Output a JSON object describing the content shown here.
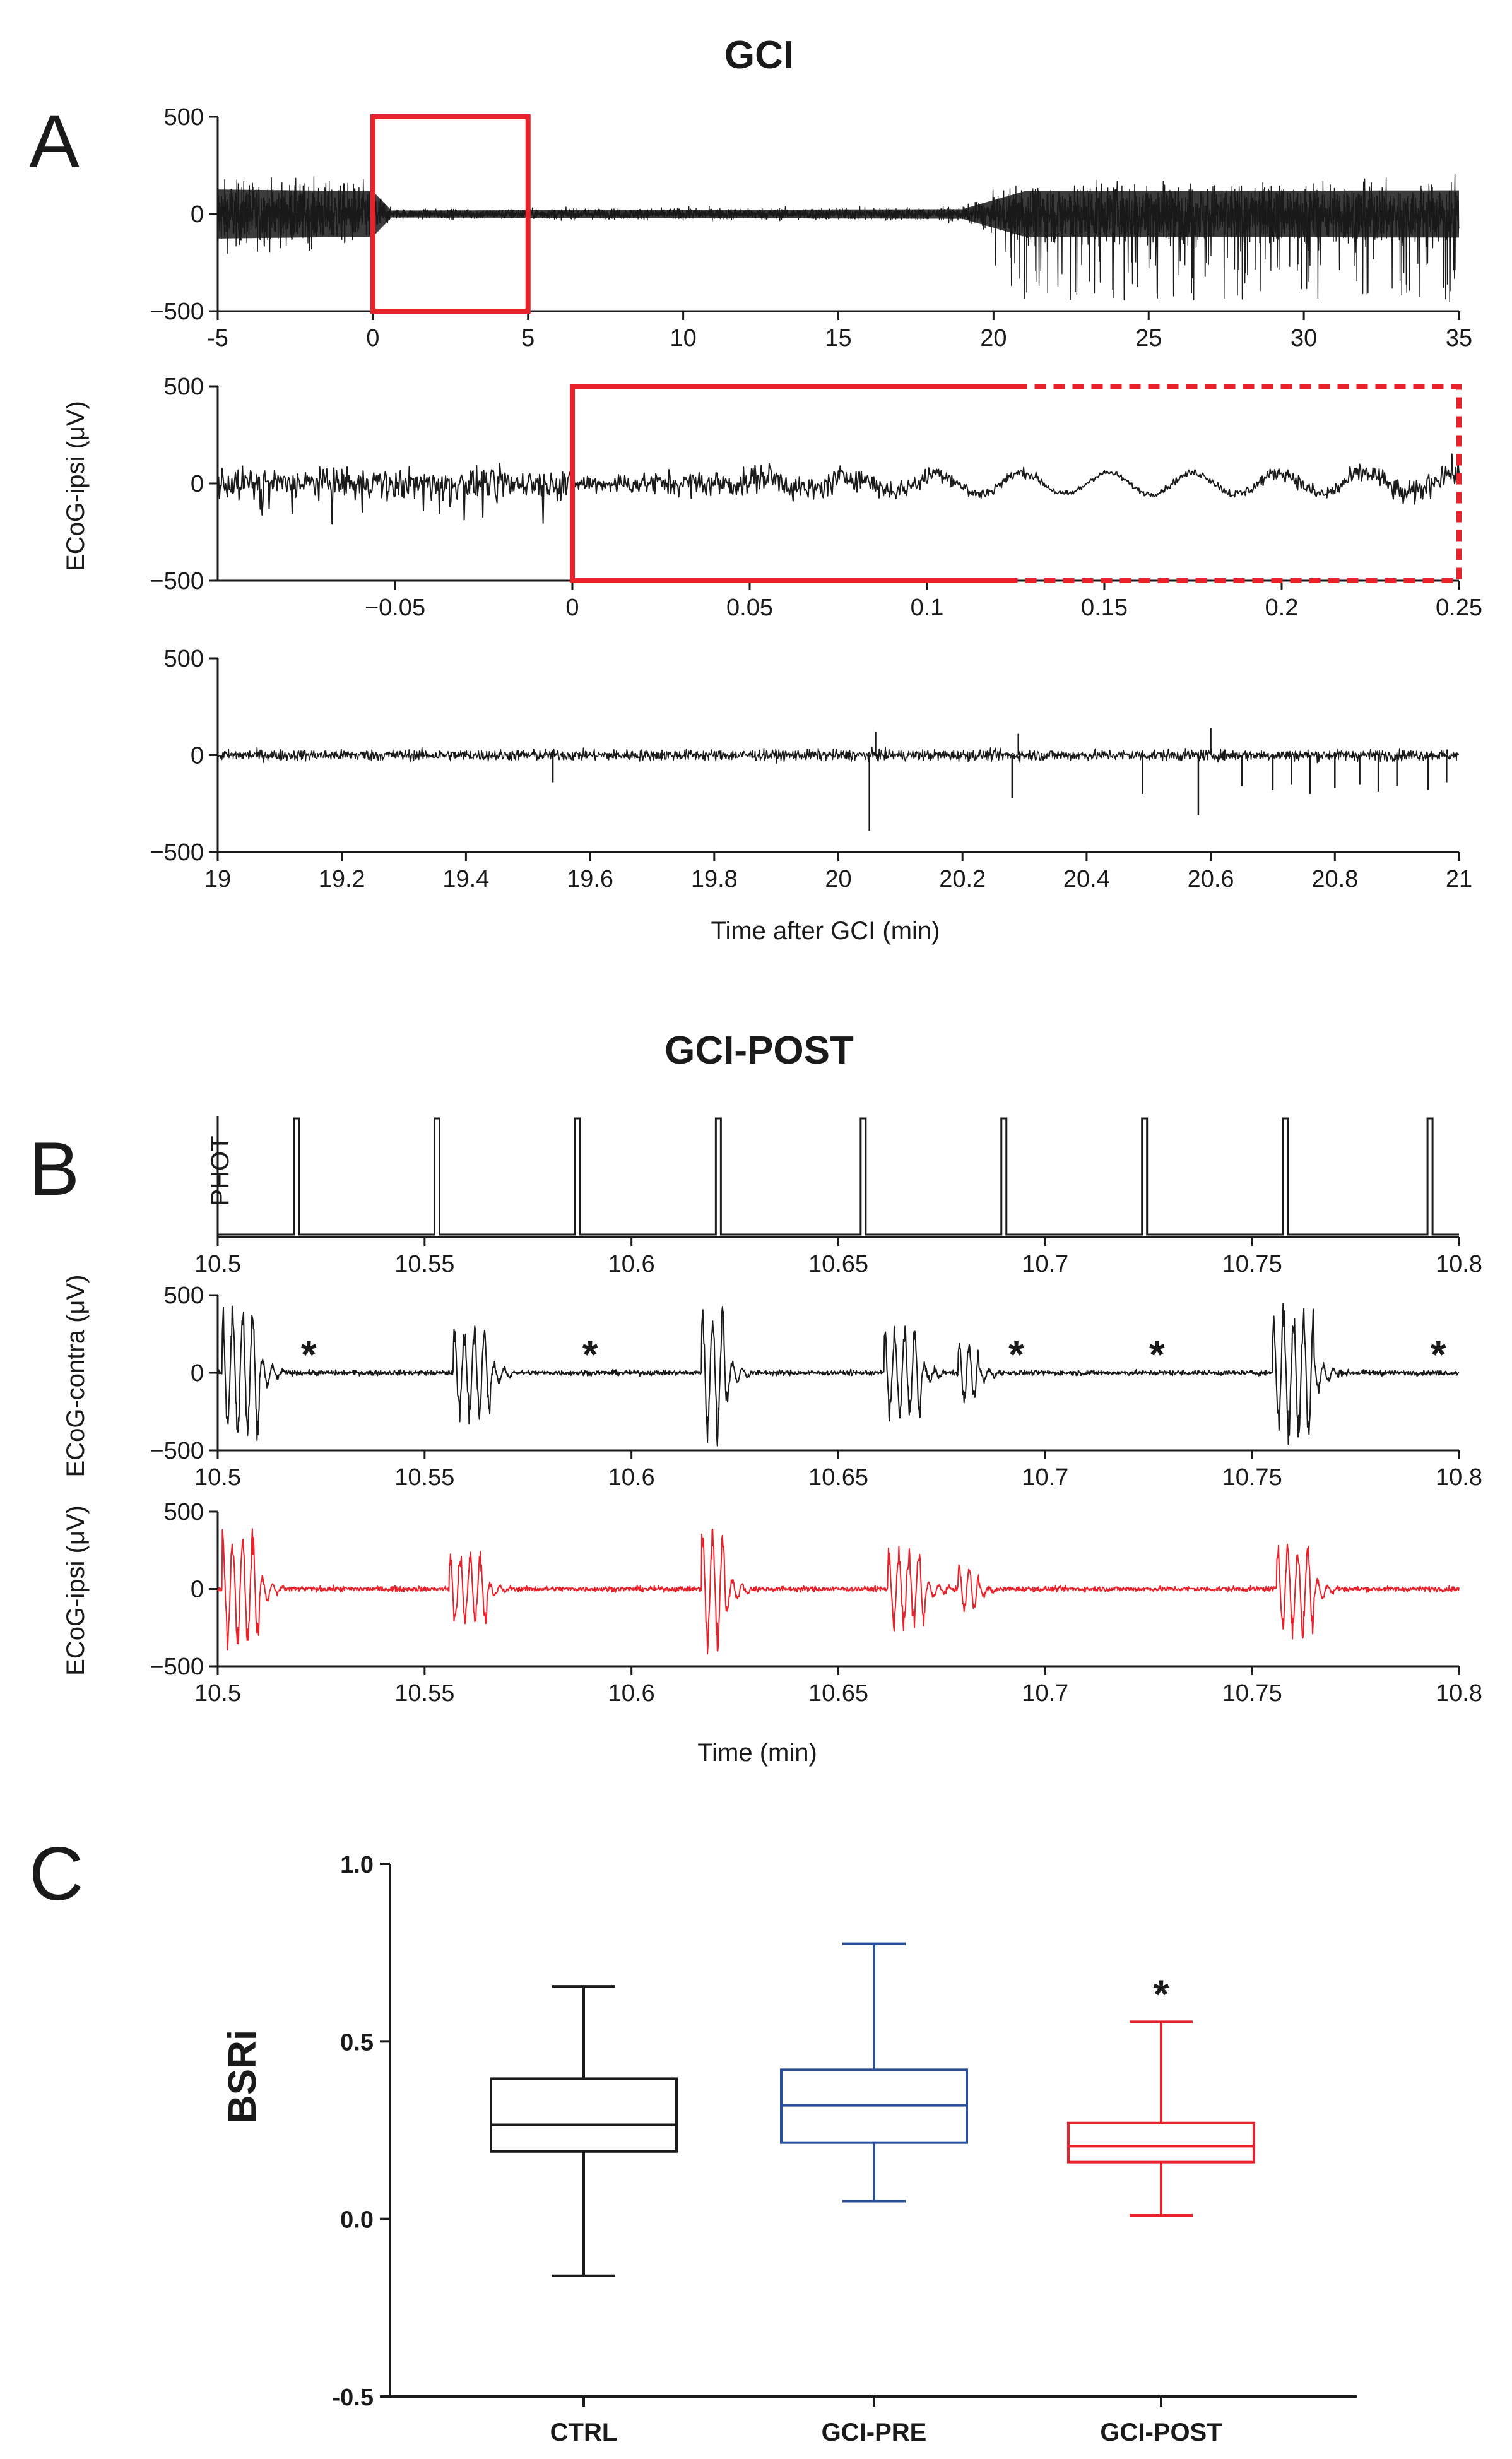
{
  "figure": {
    "panel_labels": [
      "A",
      "B",
      "C"
    ],
    "colors": {
      "black": "#1a1a1a",
      "red": "#e8212b",
      "blue": "#2a4f9a",
      "highlight": "#e8212b"
    }
  },
  "chart_data": [
    {
      "id": "A1",
      "type": "line",
      "panel_title": "GCI",
      "description_series": "ECoG-ipsi trace, -5 to 35 min",
      "xlim": [
        -5,
        35
      ],
      "ylim": [
        -500,
        500
      ],
      "xticks": [
        "-5",
        "0",
        "5",
        "10",
        "15",
        "20",
        "25",
        "30",
        "35"
      ],
      "yticks": [
        "500",
        "0",
        "−500"
      ],
      "highlight_box": {
        "x0": 0,
        "x1": 5,
        "style": "solid"
      },
      "amplitude_profile": [
        {
          "t": -5,
          "amp": 280
        },
        {
          "t": 0,
          "amp": 260
        },
        {
          "t": 0.6,
          "amp": 40
        },
        {
          "t": 19,
          "amp": 55
        },
        {
          "t": 21,
          "amp": 260
        },
        {
          "t": 35,
          "amp": 270
        }
      ]
    },
    {
      "id": "A2",
      "type": "line",
      "xlim": [
        -0.1,
        0.25
      ],
      "ylim": [
        -500,
        500
      ],
      "xticks": [
        "−0.05",
        "0",
        "0.05",
        "0.1",
        "0.15",
        "0.2",
        "0.25"
      ],
      "xtick_values": [
        -0.05,
        0,
        0.05,
        0.1,
        0.15,
        0.2,
        0.25
      ],
      "yticks": [
        "500",
        "0",
        "−500"
      ],
      "ylabel": "ECoG-ipsi (μV)",
      "highlight_box": {
        "x0": 0,
        "x_solid_end": 0.125,
        "x1": 0.25,
        "style": "solid-then-dashed"
      }
    },
    {
      "id": "A3",
      "type": "line",
      "xlim": [
        19,
        21
      ],
      "ylim": [
        -500,
        500
      ],
      "xticks": [
        "19",
        "19.2",
        "19.4",
        "19.6",
        "19.8",
        "20",
        "20.2",
        "20.4",
        "20.6",
        "20.8",
        "21"
      ],
      "yticks": [
        "500",
        "0",
        "−500"
      ],
      "xlabel": "Time after GCI (min)",
      "spikes": [
        {
          "t": 19.54,
          "v": -140
        },
        {
          "t": 20.05,
          "v": -390
        },
        {
          "t": 20.06,
          "v": 120
        },
        {
          "t": 20.28,
          "v": -220
        },
        {
          "t": 20.29,
          "v": 110
        },
        {
          "t": 20.49,
          "v": -200
        },
        {
          "t": 20.58,
          "v": -310
        },
        {
          "t": 20.6,
          "v": 140
        },
        {
          "t": 20.65,
          "v": -160
        },
        {
          "t": 20.7,
          "v": -180
        },
        {
          "t": 20.73,
          "v": -150
        },
        {
          "t": 20.76,
          "v": -200
        },
        {
          "t": 20.8,
          "v": -170
        },
        {
          "t": 20.84,
          "v": -150
        },
        {
          "t": 20.87,
          "v": -190
        },
        {
          "t": 20.9,
          "v": -160
        },
        {
          "t": 20.95,
          "v": -180
        },
        {
          "t": 20.98,
          "v": -140
        }
      ]
    },
    {
      "id": "B1",
      "type": "line",
      "panel_title": "GCI-POST",
      "ylabel": "PHOT",
      "xlim": [
        10.5,
        10.8
      ],
      "xticks": [
        "10.5",
        "10.55",
        "10.6",
        "10.65",
        "10.7",
        "10.75",
        "10.8"
      ],
      "pulses": [
        10.519,
        10.553,
        10.587,
        10.621,
        10.656,
        10.69,
        10.724,
        10.758,
        10.793
      ]
    },
    {
      "id": "B2",
      "type": "line",
      "ylabel": "ECoG-contra (μV)",
      "xlim": [
        10.5,
        10.8
      ],
      "ylim": [
        -500,
        500
      ],
      "xticks": [
        "10.5",
        "10.55",
        "10.6",
        "10.65",
        "10.7",
        "10.75",
        "10.8"
      ],
      "yticks": [
        "500",
        "0",
        "−500"
      ],
      "bursts": [
        {
          "t": 10.503,
          "amp": 480,
          "dur": 0.007
        },
        {
          "t": 10.559,
          "amp": 330,
          "dur": 0.007
        },
        {
          "t": 10.619,
          "amp": 480,
          "dur": 0.004
        },
        {
          "t": 10.663,
          "amp": 320,
          "dur": 0.007
        },
        {
          "t": 10.681,
          "amp": 220,
          "dur": 0.003
        },
        {
          "t": 10.757,
          "amp": 460,
          "dur": 0.008
        }
      ],
      "asterisks": [
        {
          "t": 10.522,
          "label": "*"
        },
        {
          "t": 10.59,
          "label": "*"
        },
        {
          "t": 10.693,
          "label": "*"
        },
        {
          "t": 10.727,
          "label": "*"
        },
        {
          "t": 10.795,
          "label": "*"
        }
      ]
    },
    {
      "id": "B3",
      "type": "line",
      "ylabel": "ECoG-ipsi (μV)",
      "xlabel": "Time (min)",
      "xlim": [
        10.5,
        10.8
      ],
      "ylim": [
        -500,
        500
      ],
      "xticks": [
        "10.5",
        "10.55",
        "10.6",
        "10.65",
        "10.7",
        "10.75",
        "10.8"
      ],
      "yticks": [
        "500",
        "0",
        "−500"
      ],
      "bursts": [
        {
          "t": 10.503,
          "amp": 400,
          "dur": 0.007
        },
        {
          "t": 10.558,
          "amp": 260,
          "dur": 0.007
        },
        {
          "t": 10.619,
          "amp": 430,
          "dur": 0.004
        },
        {
          "t": 10.664,
          "amp": 280,
          "dur": 0.007
        },
        {
          "t": 10.681,
          "amp": 160,
          "dur": 0.003
        },
        {
          "t": 10.758,
          "amp": 330,
          "dur": 0.007
        }
      ]
    },
    {
      "id": "C",
      "type": "box",
      "ylabel": "BSRi",
      "ylim": [
        -0.5,
        1.0
      ],
      "yticks": [
        "1.0",
        "0.5",
        "0.0",
        "-0.5"
      ],
      "ytick_values": [
        1.0,
        0.5,
        0.0,
        -0.5
      ],
      "categories": [
        "CTRL",
        "GCI-PRE",
        "GCI-POST"
      ],
      "boxes": [
        {
          "name": "CTRL",
          "min": -0.16,
          "q1": 0.19,
          "median": 0.265,
          "q3": 0.395,
          "max": 0.655,
          "color": "#1a1a1a"
        },
        {
          "name": "GCI-PRE",
          "min": 0.05,
          "q1": 0.215,
          "median": 0.32,
          "q3": 0.42,
          "max": 0.775,
          "color": "#2a4f9a"
        },
        {
          "name": "GCI-POST",
          "min": 0.01,
          "q1": 0.16,
          "median": 0.205,
          "q3": 0.27,
          "max": 0.555,
          "color": "#e8212b",
          "annotation": "*"
        }
      ]
    }
  ]
}
